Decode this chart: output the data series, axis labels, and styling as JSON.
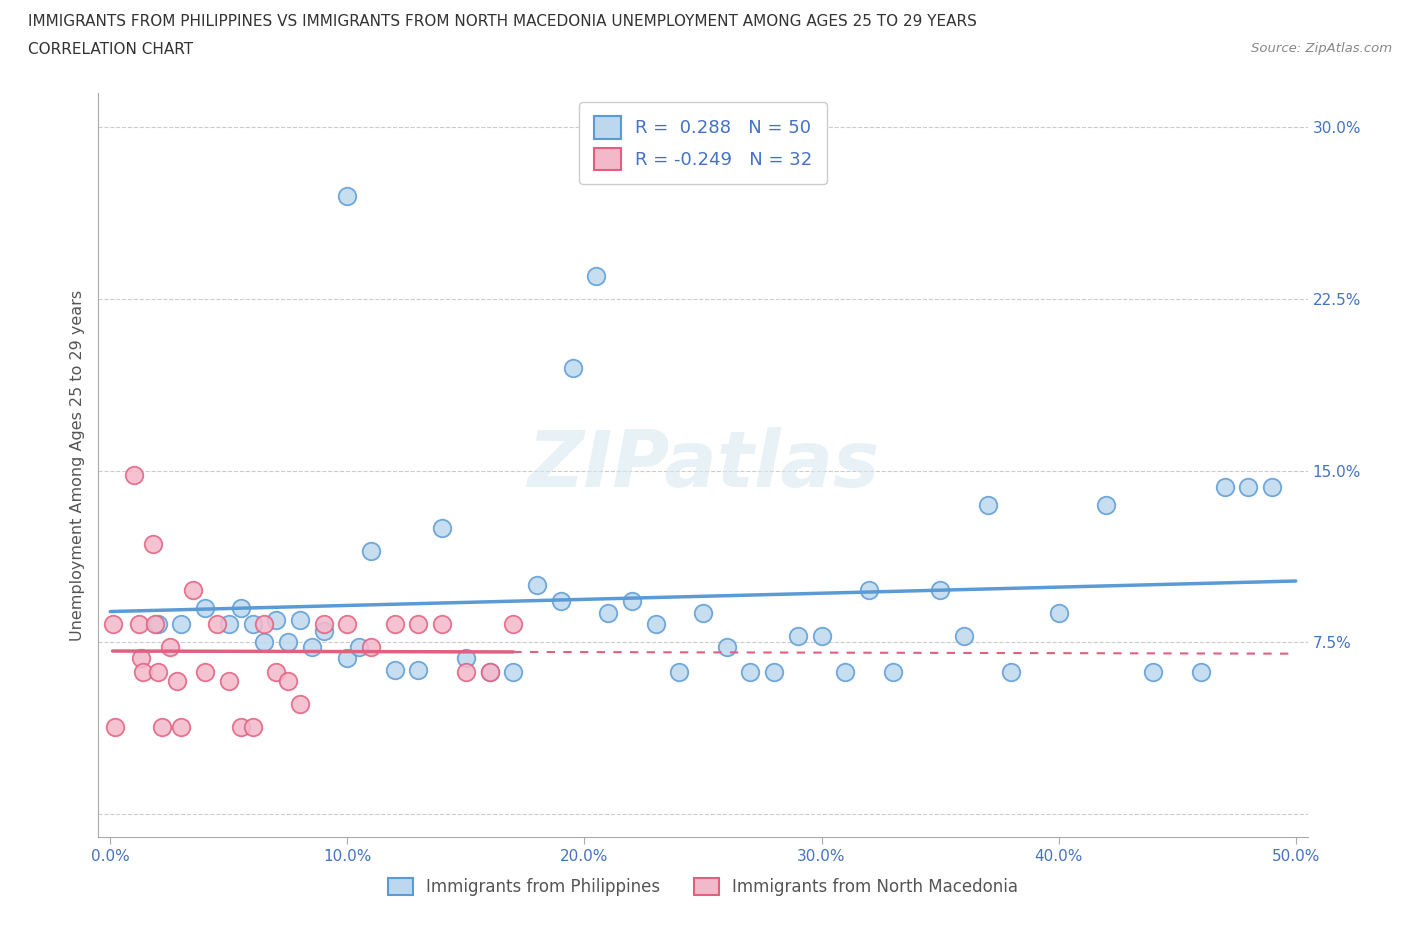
{
  "title_line1": "IMMIGRANTS FROM PHILIPPINES VS IMMIGRANTS FROM NORTH MACEDONIA UNEMPLOYMENT AMONG AGES 25 TO 29 YEARS",
  "title_line2": "CORRELATION CHART",
  "source": "Source: ZipAtlas.com",
  "xlabel_philippines": "Immigrants from Philippines",
  "xlabel_north_macedonia": "Immigrants from North Macedonia",
  "ylabel": "Unemployment Among Ages 25 to 29 years",
  "xlim": [
    -0.005,
    0.505
  ],
  "ylim": [
    -0.01,
    0.315
  ],
  "xticks": [
    0.0,
    0.1,
    0.2,
    0.3,
    0.4,
    0.5
  ],
  "yticks": [
    0.0,
    0.075,
    0.15,
    0.225,
    0.3
  ],
  "ytick_labels": [
    "",
    "7.5%",
    "15.0%",
    "22.5%",
    "30.0%"
  ],
  "xtick_labels": [
    "0.0%",
    "10.0%",
    "20.0%",
    "30.0%",
    "40.0%",
    "50.0%"
  ],
  "philippines_color": "#5b9bd5",
  "philippines_color_face": "#bdd7ee",
  "north_macedonia_color_edge": "#e06080",
  "north_macedonia_color_face": "#f4b8cb",
  "r_philippines": 0.288,
  "n_philippines": 50,
  "r_north_macedonia": -0.249,
  "n_north_macedonia": 32,
  "watermark": "ZIPatlas",
  "philippines_x": [
    0.02,
    0.03,
    0.04,
    0.05,
    0.055,
    0.06,
    0.065,
    0.07,
    0.075,
    0.08,
    0.085,
    0.09,
    0.1,
    0.1,
    0.105,
    0.11,
    0.12,
    0.13,
    0.14,
    0.15,
    0.16,
    0.17,
    0.18,
    0.19,
    0.195,
    0.205,
    0.21,
    0.22,
    0.23,
    0.24,
    0.25,
    0.26,
    0.27,
    0.28,
    0.29,
    0.3,
    0.31,
    0.32,
    0.33,
    0.35,
    0.36,
    0.37,
    0.38,
    0.4,
    0.42,
    0.44,
    0.46,
    0.47,
    0.48,
    0.49
  ],
  "philippines_y": [
    0.083,
    0.083,
    0.09,
    0.083,
    0.09,
    0.083,
    0.075,
    0.085,
    0.075,
    0.085,
    0.073,
    0.08,
    0.27,
    0.068,
    0.073,
    0.115,
    0.063,
    0.063,
    0.125,
    0.068,
    0.062,
    0.062,
    0.1,
    0.093,
    0.195,
    0.235,
    0.088,
    0.093,
    0.083,
    0.062,
    0.088,
    0.073,
    0.062,
    0.062,
    0.078,
    0.078,
    0.062,
    0.098,
    0.062,
    0.098,
    0.078,
    0.135,
    0.062,
    0.088,
    0.135,
    0.062,
    0.062,
    0.143,
    0.143,
    0.143
  ],
  "north_macedonia_x": [
    0.001,
    0.002,
    0.01,
    0.012,
    0.013,
    0.014,
    0.018,
    0.019,
    0.02,
    0.022,
    0.025,
    0.028,
    0.03,
    0.035,
    0.04,
    0.045,
    0.05,
    0.055,
    0.06,
    0.065,
    0.07,
    0.075,
    0.08,
    0.09,
    0.1,
    0.11,
    0.12,
    0.13,
    0.14,
    0.15,
    0.16,
    0.17
  ],
  "north_macedonia_y": [
    0.083,
    0.038,
    0.148,
    0.083,
    0.068,
    0.062,
    0.118,
    0.083,
    0.062,
    0.038,
    0.073,
    0.058,
    0.038,
    0.098,
    0.062,
    0.083,
    0.058,
    0.038,
    0.038,
    0.083,
    0.062,
    0.058,
    0.048,
    0.083,
    0.083,
    0.073,
    0.083,
    0.083,
    0.083,
    0.062,
    0.062,
    0.083
  ]
}
